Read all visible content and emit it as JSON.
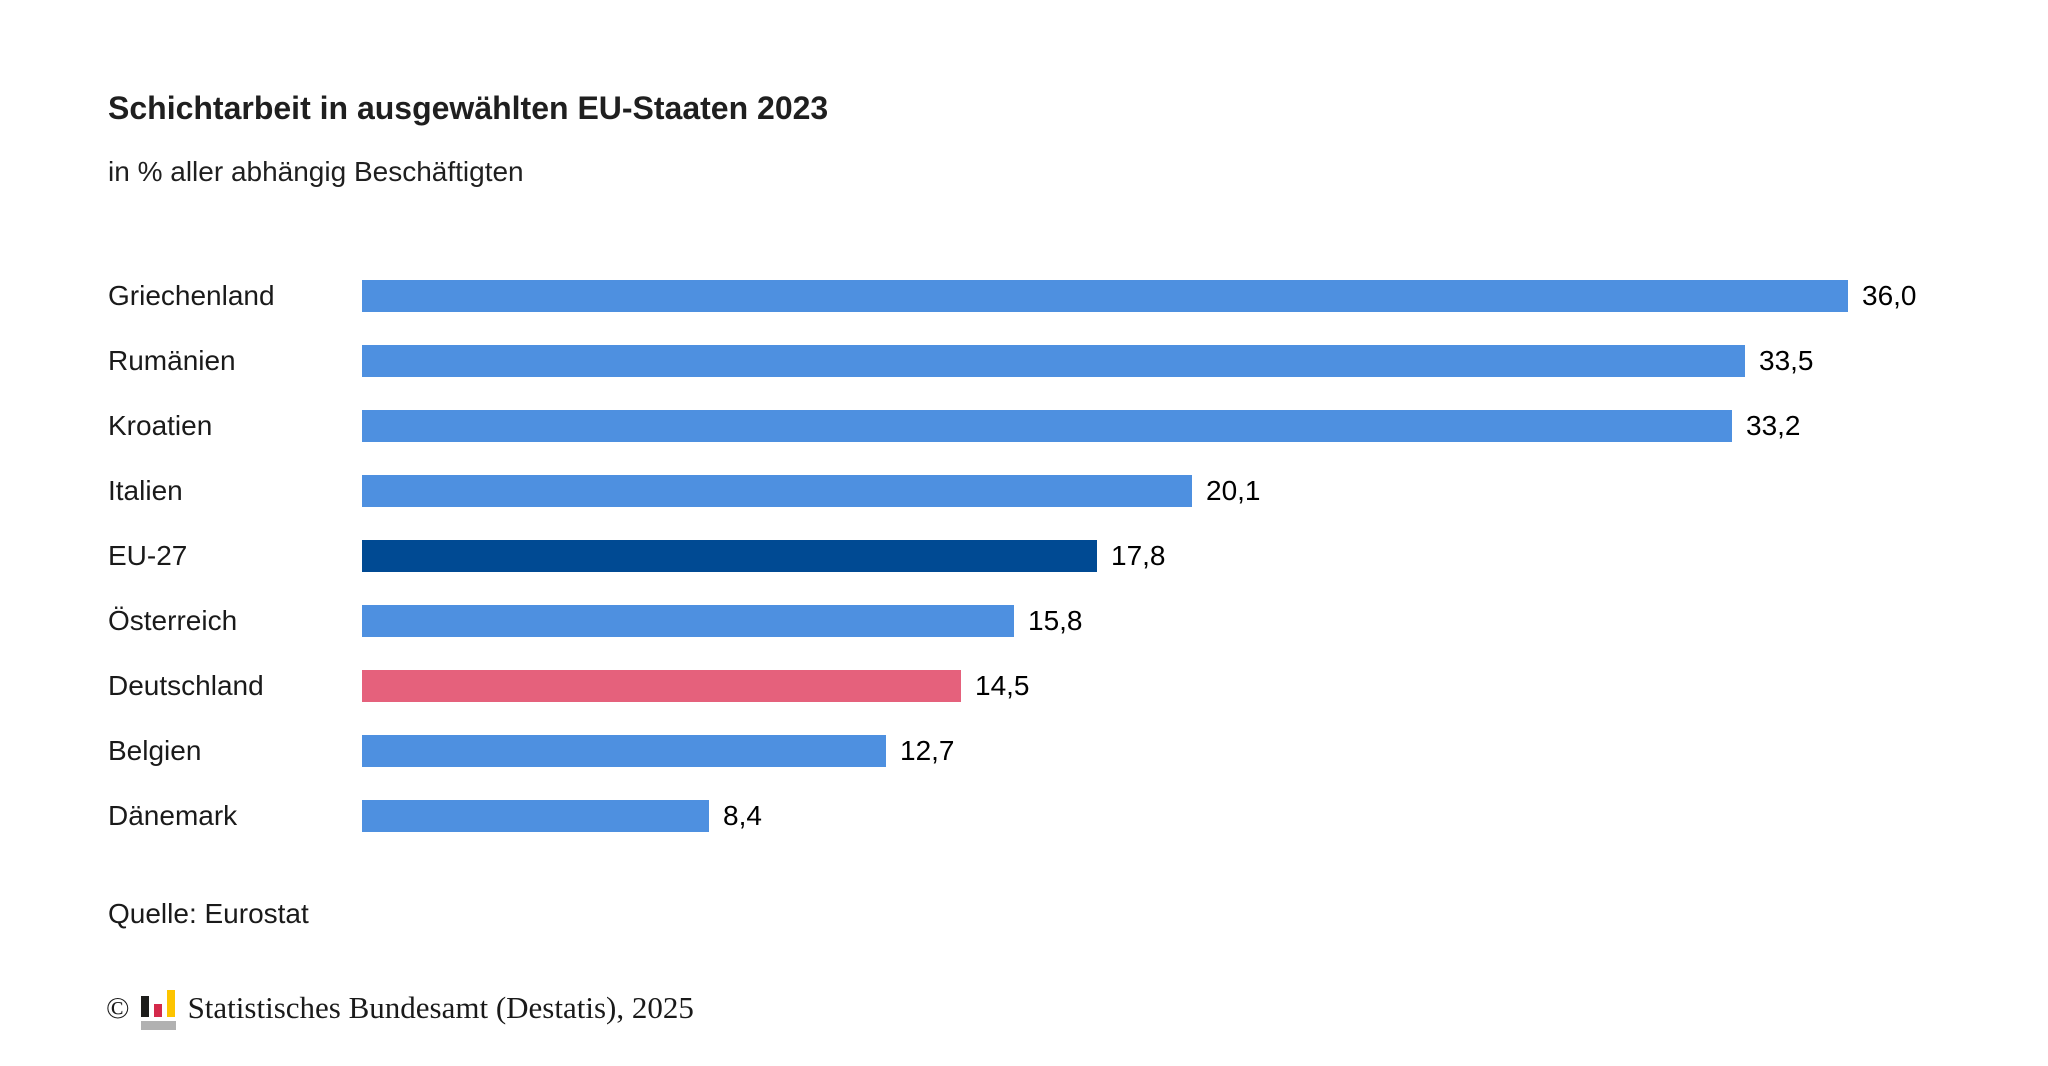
{
  "page": {
    "title": "Schichtarbeit in ausgewählten EU-Staaten 2023",
    "subtitle": "in % aller abhängig Beschäftigten",
    "source": "Quelle: Eurostat",
    "copyright_symbol": "©",
    "copyright_text": "Statistisches Bundesamt (Destatis), 2025"
  },
  "colors": {
    "bar_default": "#4E90E0",
    "bar_eu27": "#004A93",
    "bar_highlight": "#E5617C",
    "text": "#1A1A1A",
    "logo_black": "#1D1D1B",
    "logo_red": "#D4294A",
    "logo_yellow": "#FDC400",
    "logo_gray": "#B1B1B1"
  },
  "chart_data": {
    "type": "bar",
    "orientation": "horizontal",
    "title": "Schichtarbeit in ausgewählten EU-Staaten 2023",
    "subtitle": "in % aller abhängig Beschäftigten",
    "xlabel": "",
    "ylabel": "",
    "xlim": [
      0,
      36
    ],
    "grid": false,
    "legend": false,
    "categories": [
      "Griechenland",
      "Rumänien",
      "Kroatien",
      "Italien",
      "EU-27",
      "Österreich",
      "Deutschland",
      "Belgien",
      "Dänemark"
    ],
    "values": [
      36.0,
      33.5,
      33.2,
      20.1,
      17.8,
      15.8,
      14.5,
      12.7,
      8.4
    ],
    "value_labels": [
      "36,0",
      "33,5",
      "33,2",
      "20,1",
      "17,8",
      "15,8",
      "14,5",
      "12,7",
      "8,4"
    ],
    "bar_colors": [
      "default",
      "default",
      "default",
      "default",
      "eu27",
      "default",
      "highlight",
      "default",
      "default"
    ],
    "source": "Quelle: Eurostat"
  }
}
